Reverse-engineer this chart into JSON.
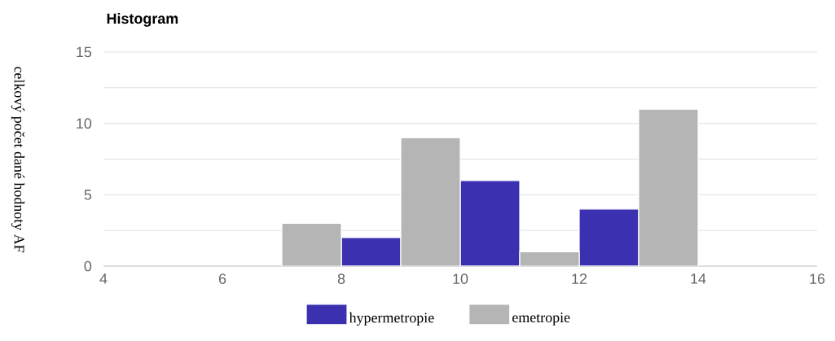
{
  "chart_data": {
    "type": "histogram",
    "title": "Histogram",
    "ylabel": "celkový počet dané hodnoty AF",
    "bins": [
      4,
      5,
      6,
      7,
      8,
      9,
      10,
      11,
      12,
      13,
      14,
      15,
      16
    ],
    "series": [
      {
        "name": "hypermetropie",
        "color": "#3a30b0",
        "values": [
          0,
          0,
          0,
          0,
          2,
          0,
          6,
          0,
          4,
          0,
          0,
          0
        ]
      },
      {
        "name": "emetropie",
        "color": "#b5b5b5",
        "values": [
          0,
          0,
          0,
          3,
          0,
          9,
          0,
          1,
          0,
          11,
          0,
          0
        ]
      }
    ],
    "xlim": [
      4,
      16
    ],
    "xticks": [
      4,
      6,
      8,
      10,
      12,
      14,
      16
    ],
    "ylim": [
      0,
      15
    ],
    "yticks": [
      0,
      {
        "value": 2.5,
        "label": null
      },
      5,
      {
        "value": 7.5,
        "label": null
      },
      10,
      {
        "value": 12.5,
        "label": null
      },
      15
    ],
    "grid": "y",
    "legend": "bottom"
  }
}
